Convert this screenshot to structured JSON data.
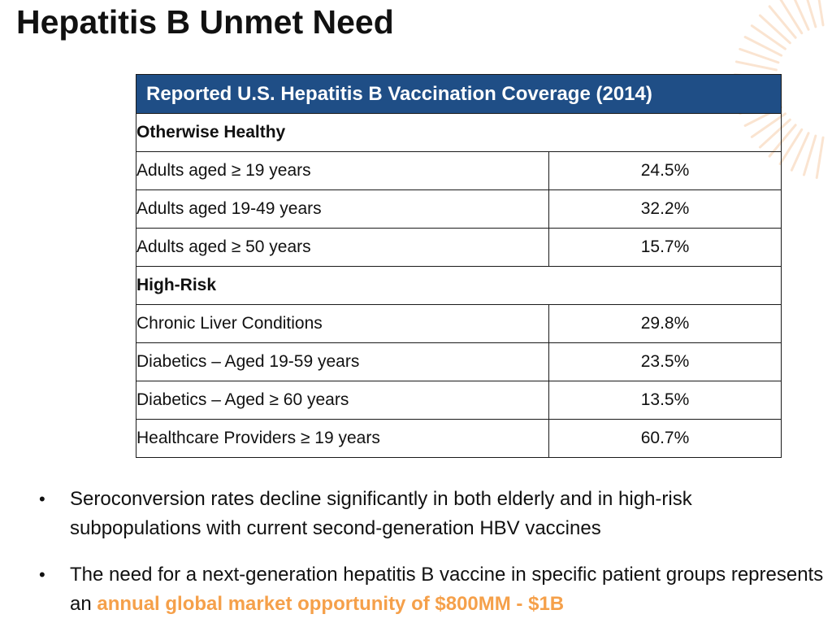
{
  "slide": {
    "title": "Hepatitis B Unmet Need"
  },
  "table": {
    "header": "Reported U.S. Hepatitis B Vaccination Coverage (2014)",
    "groups": [
      {
        "label": "Otherwise Healthy",
        "rows": [
          {
            "label": "Adults aged ≥ 19 years",
            "value": "24.5%"
          },
          {
            "label": "Adults aged 19-49 years",
            "value": "32.2%"
          },
          {
            "label": "Adults aged ≥ 50 years",
            "value": "15.7%"
          }
        ]
      },
      {
        "label": "High-Risk",
        "rows": [
          {
            "label": "Chronic Liver Conditions",
            "value": "29.8%"
          },
          {
            "label": "Diabetics – Aged 19-59 years",
            "value": "23.5%"
          },
          {
            "label": "Diabetics – Aged ≥ 60 years",
            "value": "13.5%"
          },
          {
            "label": "Healthcare Providers ≥ 19 years",
            "value": "60.7%"
          }
        ]
      }
    ]
  },
  "bullets": [
    {
      "marker": "•",
      "text": "Seroconversion rates decline significantly in both elderly and in high-risk subpopulations with current second-generation HBV vaccines"
    },
    {
      "marker": "•",
      "text": "The need for a next-generation hepatitis B vaccine in specific patient groups represents an ",
      "highlight": "annual global market opportunity of $800MM - $1B"
    }
  ],
  "colors": {
    "table_header_bg": "#1f4e86",
    "highlight": "#f5a04a",
    "decoration": "#f6c59a"
  }
}
